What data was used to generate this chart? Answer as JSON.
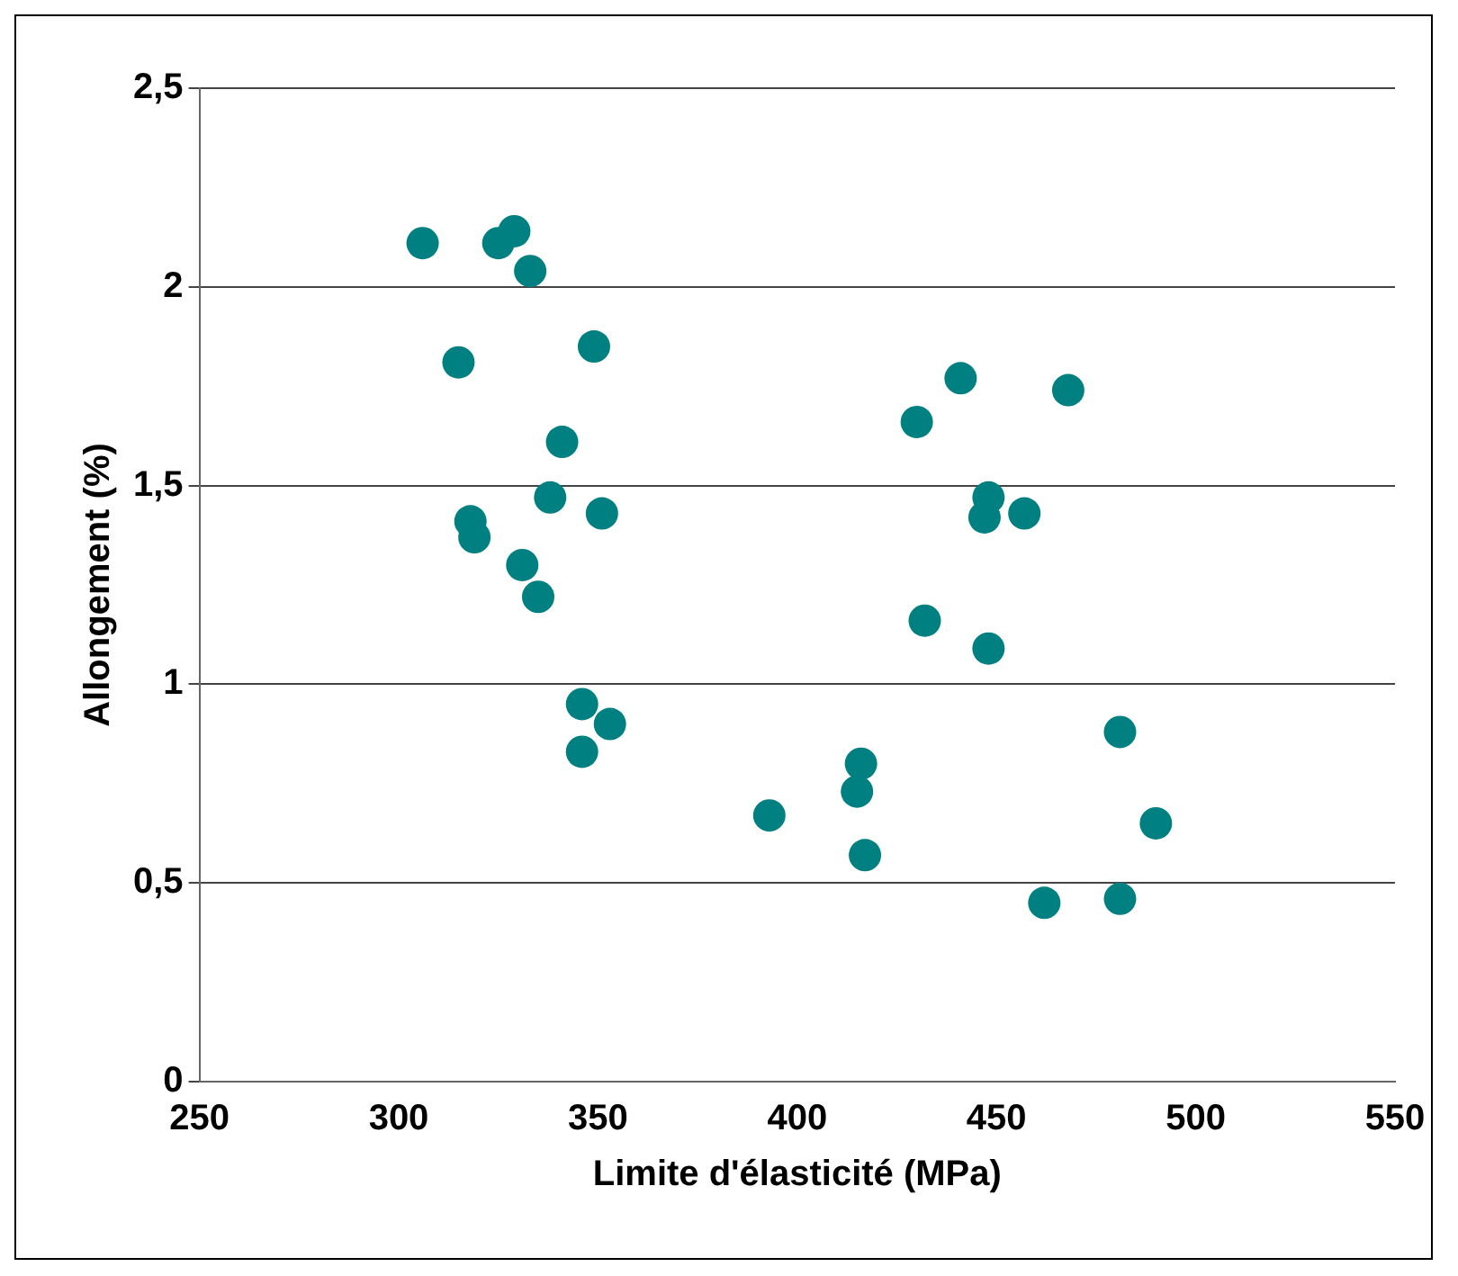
{
  "chart_data": {
    "type": "scatter",
    "xlabel": "Limite d'élasticité (MPa)",
    "ylabel": "Allongement (%)",
    "xlim": [
      250,
      550
    ],
    "xticks": [
      250,
      300,
      350,
      400,
      450,
      500,
      550
    ],
    "ylim": [
      0,
      2.5
    ],
    "yticks": [
      {
        "value": 0,
        "label": "0"
      },
      {
        "value": 0.5,
        "label": "0,5"
      },
      {
        "value": 1,
        "label": "1"
      },
      {
        "value": 1.5,
        "label": "1,5"
      },
      {
        "value": 2,
        "label": "2"
      },
      {
        "value": 2.5,
        "label": "2,5"
      }
    ],
    "grid": "y",
    "legend": false,
    "marker": "circle",
    "series": [
      {
        "color": "#008080",
        "x": [
          306,
          325,
          329,
          333,
          315,
          349,
          341,
          338,
          351,
          318,
          319,
          331,
          335,
          346,
          353,
          346,
          441,
          468,
          430,
          448,
          447,
          457,
          432,
          448,
          481,
          416,
          415,
          393,
          490,
          417,
          462,
          481
        ],
        "values": [
          2.11,
          2.11,
          2.14,
          2.04,
          1.81,
          1.85,
          1.61,
          1.47,
          1.43,
          1.41,
          1.37,
          1.3,
          1.22,
          0.95,
          0.9,
          0.83,
          1.77,
          1.74,
          1.66,
          1.47,
          1.42,
          1.43,
          1.16,
          1.09,
          0.88,
          0.8,
          0.73,
          0.67,
          0.65,
          0.57,
          0.45,
          0.46
        ]
      }
    ]
  }
}
